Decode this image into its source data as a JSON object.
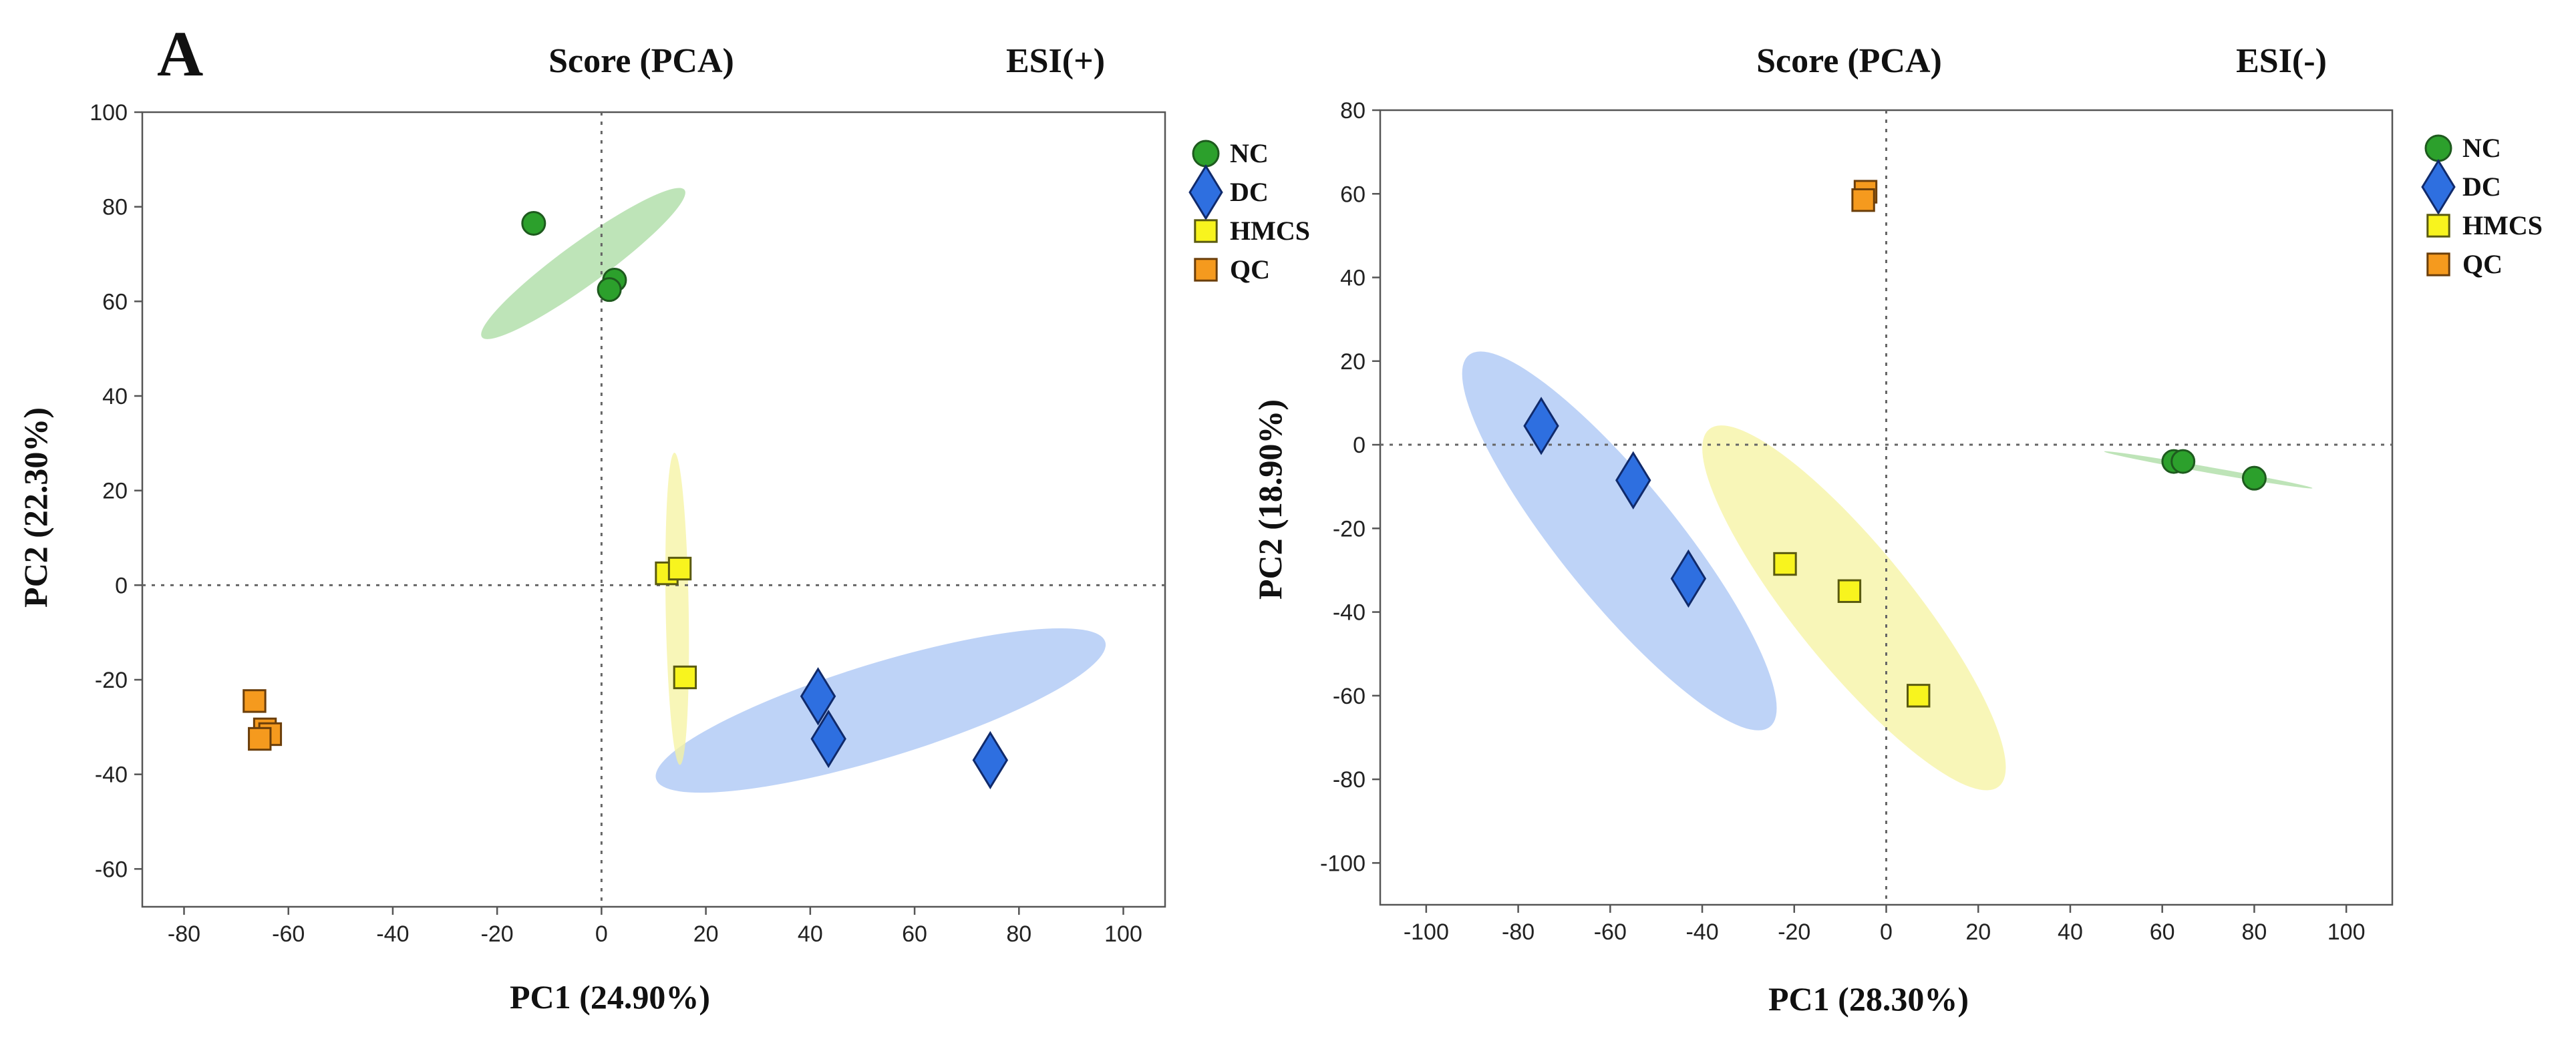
{
  "panel_letter": "A",
  "chart_data": [
    {
      "type": "scatter",
      "title": "Score (PCA)",
      "subtitle": "ESI(+)",
      "xlabel": "PC1 (24.90%)",
      "ylabel": "PC2 (22.30%)",
      "xlim": [
        -88,
        108
      ],
      "ylim": [
        -68,
        100
      ],
      "xticks": [
        -80,
        -60,
        -40,
        -20,
        0,
        20,
        40,
        60,
        80,
        100
      ],
      "yticks": [
        -60,
        -40,
        -20,
        0,
        20,
        40,
        60,
        80,
        100
      ],
      "grid": false,
      "reference_lines": {
        "x": 0,
        "y": 0
      },
      "legend": [
        "NC",
        "DC",
        "HMCS",
        "QC"
      ],
      "legend_position": "right",
      "series": [
        {
          "name": "NC",
          "marker": "circle",
          "color": "#2ca02c",
          "edge": "#1e5a1e",
          "points": [
            [
              -13,
              76.5
            ],
            [
              2.5,
              64.5
            ],
            [
              1.5,
              62.5
            ]
          ],
          "ellipse": {
            "cx": -3.5,
            "cy": 68,
            "rx": 24,
            "ry": 4.5,
            "angle_deg": -36,
            "fill": "#a8dba0"
          }
        },
        {
          "name": "DC",
          "marker": "diamond",
          "color": "#2e6fe0",
          "edge": "#102a6b",
          "points": [
            [
              41.5,
              -23.5
            ],
            [
              43.5,
              -32.5
            ],
            [
              74.5,
              -37
            ]
          ],
          "ellipse": {
            "cx": 53.5,
            "cy": -26.5,
            "rx": 45,
            "ry": 10,
            "angle_deg": -17,
            "fill": "#a8c4f4"
          }
        },
        {
          "name": "HMCS",
          "marker": "square",
          "color": "#f8f41e",
          "edge": "#5a5a10",
          "points": [
            [
              12.5,
              2.5
            ],
            [
              15,
              3.5
            ],
            [
              16,
              -19.5
            ]
          ],
          "ellipse": {
            "cx": 14.5,
            "cy": -5,
            "rx": 2.2,
            "ry": 33,
            "angle_deg": -1,
            "fill": "#f6f3a0"
          }
        },
        {
          "name": "QC",
          "marker": "square",
          "color": "#f59a1e",
          "edge": "#6b3e0a",
          "points": [
            [
              -66.5,
              -24.5
            ],
            [
              -64.5,
              -30.5
            ],
            [
              -63.5,
              -31.5
            ],
            [
              -65.5,
              -32.5
            ]
          ]
        }
      ]
    },
    {
      "type": "scatter",
      "title": "Score (PCA)",
      "subtitle": "ESI(-)",
      "xlabel": "PC1 (28.30%)",
      "ylabel": "PC2 (18.90%)",
      "xlim": [
        -110,
        110
      ],
      "ylim": [
        -110,
        80
      ],
      "xticks": [
        -100,
        -80,
        -60,
        -40,
        -20,
        0,
        20,
        40,
        60,
        80,
        100
      ],
      "yticks": [
        -100,
        -80,
        -60,
        -40,
        -20,
        0,
        20,
        40,
        60,
        80
      ],
      "grid": false,
      "reference_lines": {
        "x": 0,
        "y": 0
      },
      "legend": [
        "NC",
        "DC",
        "HMCS",
        "QC"
      ],
      "legend_position": "right",
      "series": [
        {
          "name": "NC",
          "marker": "circle",
          "color": "#2ca02c",
          "edge": "#1e5a1e",
          "points": [
            [
              62.5,
              -4
            ],
            [
              64.5,
              -4
            ],
            [
              80,
              -8
            ]
          ],
          "ellipse": {
            "cx": 70,
            "cy": -6,
            "rx": 23,
            "ry": 0.7,
            "angle_deg": 10,
            "fill": "#a8dba0"
          }
        },
        {
          "name": "DC",
          "marker": "diamond",
          "color": "#2e6fe0",
          "edge": "#102a6b",
          "points": [
            [
              -75,
              4.5
            ],
            [
              -55,
              -8.5
            ],
            [
              -43,
              -32
            ]
          ],
          "ellipse": {
            "cx": -58,
            "cy": -23,
            "rx": 52,
            "ry": 14,
            "angle_deg": 51,
            "fill": "#a8c4f4"
          }
        },
        {
          "name": "HMCS",
          "marker": "square",
          "color": "#f8f41e",
          "edge": "#5a5a10",
          "points": [
            [
              -22,
              -28.5
            ],
            [
              -8,
              -35
            ],
            [
              7,
              -60
            ]
          ],
          "ellipse": {
            "cx": -7,
            "cy": -39,
            "rx": 50,
            "ry": 14,
            "angle_deg": 51,
            "fill": "#f6f3a0"
          }
        },
        {
          "name": "QC",
          "marker": "square",
          "color": "#f59a1e",
          "edge": "#6b3e0a",
          "points": [
            [
              -4.5,
              60.5
            ],
            [
              -5,
              58.5
            ]
          ]
        }
      ]
    }
  ]
}
